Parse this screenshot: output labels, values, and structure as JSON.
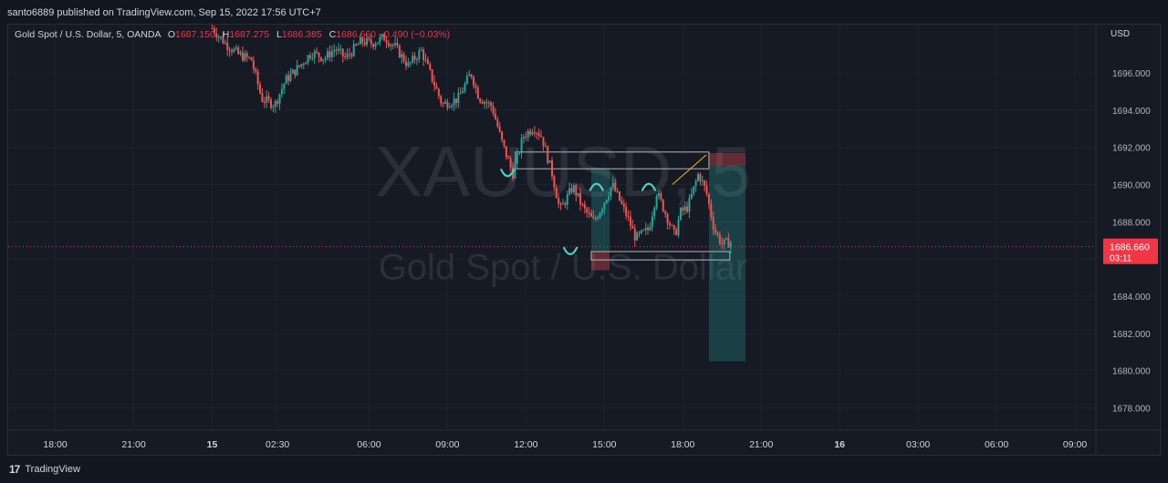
{
  "header": {
    "published": "santo6889 published on TradingView.com, Sep 15, 2022 17:56 UTC+7"
  },
  "legend": {
    "symbol": "Gold Spot / U.S. Dollar, 5, OANDA",
    "o_label": "O",
    "o_val": "1687.150",
    "h_label": "H",
    "h_val": "1687.275",
    "l_label": "L",
    "l_val": "1686.385",
    "c_label": "C",
    "c_val": "1686.660",
    "change": "−0.490 (−0.03%)"
  },
  "watermark": {
    "ticker": "XAUUSD, 5",
    "name": "Gold Spot / U.S. Dollar"
  },
  "footer": {
    "brand": "TradingView",
    "logo_icon": "tradingview-logo-icon"
  },
  "colors": {
    "background": "#161a25",
    "up": "#26a69a",
    "down": "#ef5350",
    "price_tag": "#f23645",
    "grid": "#1e222d",
    "text": "#d1d4dc"
  },
  "chart_data": {
    "type": "candlestick",
    "currency": "USD",
    "y_ticks": [
      "1696.000",
      "1694.000",
      "1692.000",
      "1690.000",
      "1688.000",
      "1686.000",
      "1684.000",
      "1682.000",
      "1680.000",
      "1678.000"
    ],
    "ylim": [
      1676.8,
      1698.6
    ],
    "x_ticks": [
      {
        "label": "18:00",
        "h": -6,
        "bold": false
      },
      {
        "label": "21:00",
        "h": -3,
        "bold": false
      },
      {
        "label": "15",
        "h": 0,
        "bold": true
      },
      {
        "label": "02:30",
        "h": 2.5,
        "bold": false
      },
      {
        "label": "06:00",
        "h": 6,
        "bold": false
      },
      {
        "label": "09:00",
        "h": 9,
        "bold": false
      },
      {
        "label": "12:00",
        "h": 12,
        "bold": false
      },
      {
        "label": "15:00",
        "h": 15,
        "bold": false
      },
      {
        "label": "18:00",
        "h": 18,
        "bold": false
      },
      {
        "label": "21:00",
        "h": 21,
        "bold": false
      },
      {
        "label": "16",
        "h": 24,
        "bold": true
      },
      {
        "label": "03:00",
        "h": 27,
        "bold": false
      },
      {
        "label": "06:00",
        "h": 30,
        "bold": false
      },
      {
        "label": "09:00",
        "h": 33,
        "bold": false
      }
    ],
    "xlim": [
      -7.8,
      33.8
    ],
    "close_path": [
      [
        0.0,
        1698.4
      ],
      [
        0.5,
        1697.6
      ],
      [
        1.0,
        1697.0
      ],
      [
        1.5,
        1696.7
      ],
      [
        1.9,
        1694.6
      ],
      [
        2.4,
        1694.3
      ],
      [
        2.8,
        1695.6
      ],
      [
        3.3,
        1696.3
      ],
      [
        3.8,
        1697.1
      ],
      [
        4.3,
        1696.8
      ],
      [
        4.7,
        1697.3
      ],
      [
        5.1,
        1696.8
      ],
      [
        5.7,
        1697.7
      ],
      [
        6.1,
        1697.6
      ],
      [
        6.6,
        1697.9
      ],
      [
        7.0,
        1697.4
      ],
      [
        7.5,
        1696.4
      ],
      [
        8.0,
        1697.2
      ],
      [
        8.3,
        1696.1
      ],
      [
        8.8,
        1694.3
      ],
      [
        9.4,
        1694.6
      ],
      [
        9.9,
        1696.0
      ],
      [
        10.2,
        1694.7
      ],
      [
        10.7,
        1694.2
      ],
      [
        11.1,
        1692.2
      ],
      [
        11.5,
        1690.6
      ],
      [
        11.9,
        1692.6
      ],
      [
        12.3,
        1693.1
      ],
      [
        12.6,
        1692.6
      ],
      [
        13.0,
        1690.6
      ],
      [
        13.3,
        1688.6
      ],
      [
        13.8,
        1689.9
      ],
      [
        14.2,
        1688.7
      ],
      [
        14.6,
        1688.0
      ],
      [
        14.9,
        1688.8
      ],
      [
        15.3,
        1690.0
      ],
      [
        15.6,
        1689.1
      ],
      [
        15.9,
        1688.2
      ],
      [
        16.2,
        1687.1
      ],
      [
        16.7,
        1687.6
      ],
      [
        17.0,
        1689.6
      ],
      [
        17.3,
        1688.6
      ],
      [
        17.7,
        1687.2
      ],
      [
        17.9,
        1688.5
      ],
      [
        18.2,
        1688.8
      ],
      [
        18.6,
        1690.6
      ],
      [
        18.9,
        1689.6
      ],
      [
        19.2,
        1687.6
      ],
      [
        19.5,
        1686.8
      ],
      [
        19.8,
        1686.9
      ]
    ],
    "close_price": "1686.660",
    "countdown": "03:11",
    "drawings": [
      {
        "type": "rect",
        "x1": 11.6,
        "x2": 19.0,
        "y1": 1690.85,
        "y2": 1691.75,
        "fill": "none"
      },
      {
        "type": "rect",
        "x1": 14.5,
        "x2": 19.8,
        "y1": 1685.95,
        "y2": 1686.4,
        "fill": "none"
      },
      {
        "type": "position",
        "x": 14.5,
        "x2": 15.2,
        "entry": 1686.4,
        "target": 1690.9,
        "stop": 1685.4
      },
      {
        "type": "position",
        "x": 19.0,
        "x2": 20.4,
        "entry": 1691.0,
        "target": 1680.5,
        "stop": 1691.7
      },
      {
        "type": "arc",
        "x": 11.3,
        "y": 1690.6,
        "dir": "down"
      },
      {
        "type": "arc",
        "x": 13.7,
        "y": 1686.4,
        "dir": "down"
      },
      {
        "type": "arc",
        "x": 14.7,
        "y": 1689.9,
        "dir": "up"
      },
      {
        "type": "arc",
        "x": 16.7,
        "y": 1689.9,
        "dir": "up"
      },
      {
        "type": "line",
        "x1": 17.6,
        "y1": 1690.0,
        "x2": 18.9,
        "y2": 1691.6,
        "color": "#f0b90b"
      }
    ]
  }
}
